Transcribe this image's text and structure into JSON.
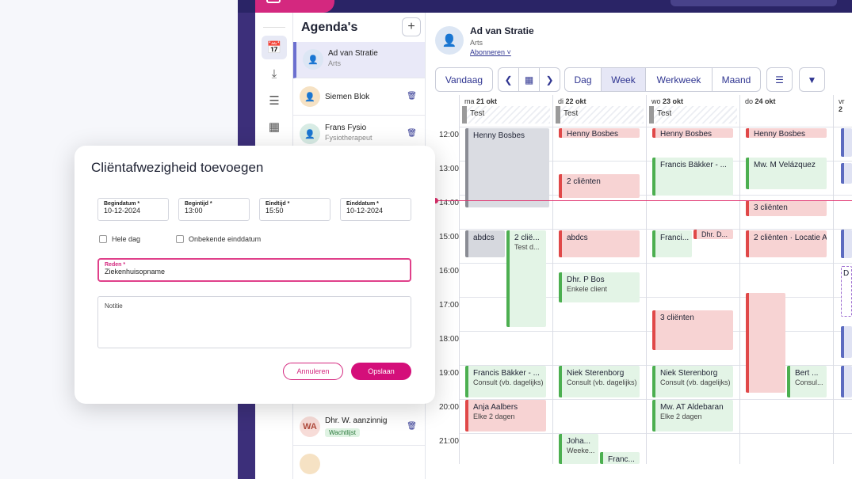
{
  "agenda": {
    "title": "Agenda's",
    "add_label": "+",
    "people": [
      {
        "name": "Ad van Stratie",
        "role": "Arts"
      },
      {
        "name": "Siemen Blok",
        "role": ""
      },
      {
        "name": "Frans Fysio",
        "role": "Fysiotherapeut"
      },
      {
        "name": "Dhr. W. aanzinnig",
        "initials": "WA",
        "tag": "Wachtlijst"
      }
    ]
  },
  "calendar": {
    "person_name": "Ad van Stratie",
    "person_role": "Arts",
    "subscribe": "Abonneren",
    "today": "Vandaag",
    "views": [
      "Dag",
      "Week",
      "Werkweek",
      "Maand"
    ],
    "active_view": "Week",
    "days": [
      {
        "label": "ma",
        "date": "21 okt"
      },
      {
        "label": "di",
        "date": "22 okt"
      },
      {
        "label": "wo",
        "date": "23 okt"
      },
      {
        "label": "do",
        "date": "24 okt"
      },
      {
        "label": "vr",
        "date": "2"
      }
    ],
    "allday_label": "Test",
    "hours": [
      "12:00",
      "13:00",
      "14:00",
      "15:00",
      "16:00",
      "17:00",
      "18:00",
      "19:00",
      "20:00",
      "21:00"
    ],
    "events": {
      "henny": "Henny Bosbes",
      "francis": "Francis Bäkker - ...",
      "velazquez": "Mw. M Velázquez",
      "two_clients": "2 cliënten",
      "three_clients": "3 cliënten",
      "abdcs": "abdcs",
      "two_clie": "2 clië...",
      "test_d": "Test d...",
      "franci": "Franci...",
      "dhr_d": "Dhr. D...",
      "locatie": "Locatie A",
      "dhr_bos": "Dhr. P Bos",
      "enkele": "Enkele client",
      "francis19": "Francis Bäkker - ...",
      "consult": "Consult (vb. dagelijks)",
      "niek": "Niek Sterenborg",
      "bert": "Bert ...",
      "consul": "Consul...",
      "anja": "Anja Aalbers",
      "elke": "Elke 2 dagen",
      "mw_at": "Mw. AT Aldebaran",
      "joha": "Joha...",
      "weeke": "Weeke...",
      "franc": "Franc...",
      "d_small": "D"
    }
  },
  "modal": {
    "title": "Cliëntafwezigheid toevoegen",
    "begin_date_label": "Begindatum *",
    "begin_date": "10-12-2024",
    "begin_time_label": "Begintijd *",
    "begin_time": "13:00",
    "end_time_label": "Eindtijd *",
    "end_time": "15:50",
    "end_date_label": "Einddatum *",
    "end_date": "10-12-2024",
    "allday_label": "Hele dag",
    "unknown_end_label": "Onbekende einddatum",
    "reason_label": "Reden *",
    "reason_value": "Ziekenhuisopname",
    "note_placeholder": "Notitie",
    "cancel": "Annuleren",
    "save": "Opslaan"
  },
  "colors": {
    "accent": "#d40f7a",
    "nav": "#2f3591",
    "sidebar": "#3c2f7a"
  }
}
